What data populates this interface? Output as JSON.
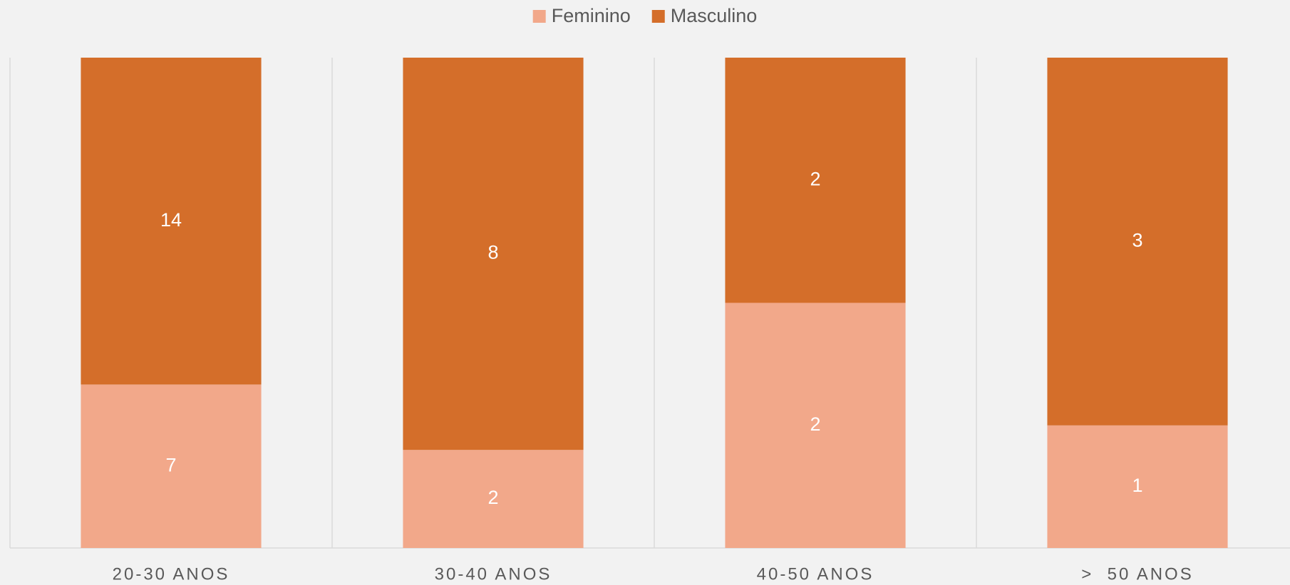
{
  "chart_data": {
    "type": "bar",
    "stacked": "percent",
    "categories": [
      "20-30 ANOS",
      "30-40 ANOS",
      "40-50 ANOS",
      ">  50 ANOS"
    ],
    "series": [
      {
        "name": "Feminino",
        "color": "#f2a88a",
        "values": [
          7,
          2,
          2,
          1
        ]
      },
      {
        "name": "Masculino",
        "color": "#d46e2a",
        "values": [
          14,
          8,
          2,
          3
        ]
      }
    ],
    "legend": "top",
    "grid": true
  }
}
